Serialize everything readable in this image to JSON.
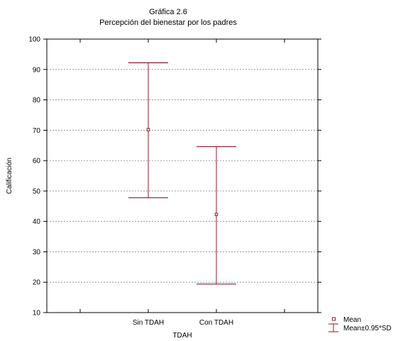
{
  "colors": {
    "series": "#8b1a2b",
    "grid": "#9a9a9a",
    "axis": "#000000"
  },
  "chart_data": {
    "type": "scatter",
    "title": "Gráfica 2.6",
    "subtitle": "Percepción del bienestar por los padres",
    "xlabel": "TDAH",
    "ylabel": "Calificación",
    "ylim": [
      10,
      100
    ],
    "yticks": [
      10,
      20,
      30,
      40,
      50,
      60,
      70,
      80,
      90,
      100
    ],
    "grid": true,
    "legend_position": "bottom-right",
    "categories": [
      "Sin  TDAH",
      "Con TDAH"
    ],
    "series": [
      {
        "name": "Mean",
        "values": [
          70.2,
          42.3
        ]
      },
      {
        "name": "Mean±0.95*SD",
        "low": [
          47.8,
          19.4
        ],
        "high": [
          92.2,
          64.6
        ]
      }
    ]
  }
}
